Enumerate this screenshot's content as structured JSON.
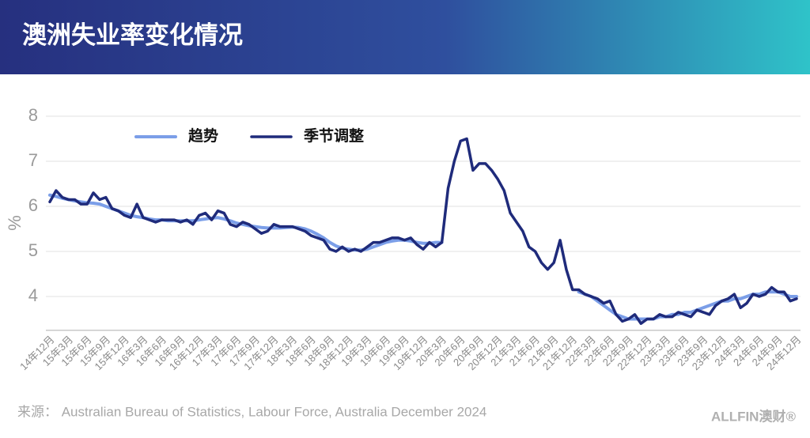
{
  "chart_data": {
    "type": "line",
    "title": "澳洲失业率变化情况",
    "y_label": "%",
    "source": "来源：  Australian Bureau of Statistics, Labour Force, Australia December 2024",
    "brand": "ALLFIN澳财®",
    "ylim": [
      3.25,
      8.25
    ],
    "yticks": [
      4,
      5,
      6,
      7,
      8
    ],
    "grid": true,
    "legend": "top-left",
    "categories": [
      "14年12月",
      null,
      null,
      "15年3月",
      null,
      null,
      "15年6月",
      null,
      null,
      "15年9月",
      null,
      null,
      "15年12月",
      null,
      null,
      "16年3月",
      null,
      null,
      "16年6月",
      null,
      null,
      "16年9月",
      null,
      null,
      "16年12月",
      null,
      null,
      "17年3月",
      null,
      null,
      "17年6月",
      null,
      null,
      "17年9月",
      null,
      null,
      "17年12月",
      null,
      null,
      "18年3月",
      null,
      null,
      "18年6月",
      null,
      null,
      "18年9月",
      null,
      null,
      "18年12月",
      null,
      null,
      "19年3月",
      null,
      null,
      "19年6月",
      null,
      null,
      "19年9月",
      null,
      null,
      "19年12月",
      null,
      null,
      "20年3月",
      null,
      null,
      "20年6月",
      null,
      null,
      "20年9月",
      null,
      null,
      "20年12月",
      null,
      null,
      "21年3月",
      null,
      null,
      "21年6月",
      null,
      null,
      "21年9月",
      null,
      null,
      "21年12月",
      null,
      null,
      "22年3月",
      null,
      null,
      "22年6月",
      null,
      null,
      "22年9月",
      null,
      null,
      "22年12月",
      null,
      null,
      "23年3月",
      null,
      null,
      "23年6月",
      null,
      null,
      "23年9月",
      null,
      null,
      "23年12月",
      null,
      null,
      "24年3月",
      null,
      null,
      "24年6月",
      null,
      null,
      "24年9月",
      null,
      null,
      "24年12月"
    ],
    "series": [
      {
        "name": "趋势",
        "color": "#7b9ee8",
        "width": 4,
        "values": [
          6.25,
          6.22,
          6.18,
          6.15,
          6.12,
          6.1,
          6.08,
          6.07,
          6.05,
          6.0,
          5.95,
          5.9,
          5.85,
          5.8,
          5.77,
          5.75,
          5.72,
          5.7,
          5.7,
          5.68,
          5.68,
          5.68,
          5.68,
          5.68,
          5.7,
          5.72,
          5.74,
          5.75,
          5.72,
          5.68,
          5.63,
          5.6,
          5.57,
          5.55,
          5.53,
          5.52,
          5.52,
          5.52,
          5.53,
          5.54,
          5.53,
          5.5,
          5.45,
          5.38,
          5.3,
          5.2,
          5.12,
          5.07,
          5.05,
          5.03,
          5.03,
          5.05,
          5.1,
          5.15,
          5.2,
          5.23,
          5.25,
          5.25,
          5.23,
          5.2,
          5.18,
          5.18,
          5.2,
          5.2,
          null,
          null,
          null,
          null,
          null,
          null,
          null,
          null,
          null,
          null,
          null,
          null,
          null,
          null,
          null,
          null,
          null,
          null,
          null,
          null,
          null,
          4.1,
          4.05,
          4.0,
          3.9,
          3.8,
          3.7,
          3.6,
          3.55,
          3.5,
          3.5,
          3.5,
          3.5,
          3.5,
          3.55,
          3.55,
          3.6,
          3.6,
          3.65,
          3.65,
          3.7,
          3.75,
          3.8,
          3.85,
          3.9,
          3.9,
          3.95,
          3.95,
          4.0,
          4.05,
          4.05,
          4.1,
          4.1,
          4.1,
          4.05,
          4.0,
          4.0
        ]
      },
      {
        "name": "季节调整",
        "color": "#1f2b7b",
        "width": 3.5,
        "values": [
          6.1,
          6.35,
          6.2,
          6.15,
          6.15,
          6.05,
          6.05,
          6.3,
          6.15,
          6.2,
          5.95,
          5.9,
          5.8,
          5.75,
          6.05,
          5.75,
          5.7,
          5.65,
          5.7,
          5.7,
          5.7,
          5.65,
          5.7,
          5.6,
          5.8,
          5.85,
          5.7,
          5.9,
          5.85,
          5.6,
          5.55,
          5.65,
          5.6,
          5.5,
          5.4,
          5.45,
          5.6,
          5.55,
          5.55,
          5.55,
          5.5,
          5.45,
          5.35,
          5.3,
          5.25,
          5.05,
          5.0,
          5.1,
          5.0,
          5.05,
          5.0,
          5.1,
          5.2,
          5.2,
          5.25,
          5.3,
          5.3,
          5.25,
          5.3,
          5.15,
          5.05,
          5.2,
          5.1,
          5.2,
          6.4,
          7.0,
          7.45,
          7.5,
          6.8,
          6.95,
          6.95,
          6.8,
          6.6,
          6.35,
          5.85,
          5.65,
          5.45,
          5.1,
          5.0,
          4.75,
          4.6,
          4.75,
          5.25,
          4.6,
          4.15,
          4.15,
          4.05,
          4.0,
          3.95,
          3.85,
          3.9,
          3.6,
          3.45,
          3.5,
          3.6,
          3.4,
          3.5,
          3.5,
          3.6,
          3.55,
          3.55,
          3.65,
          3.6,
          3.55,
          3.7,
          3.65,
          3.6,
          3.8,
          3.9,
          3.95,
          4.05,
          3.75,
          3.85,
          4.05,
          4.0,
          4.05,
          4.2,
          4.1,
          4.1,
          3.9,
          3.95
        ]
      }
    ]
  }
}
